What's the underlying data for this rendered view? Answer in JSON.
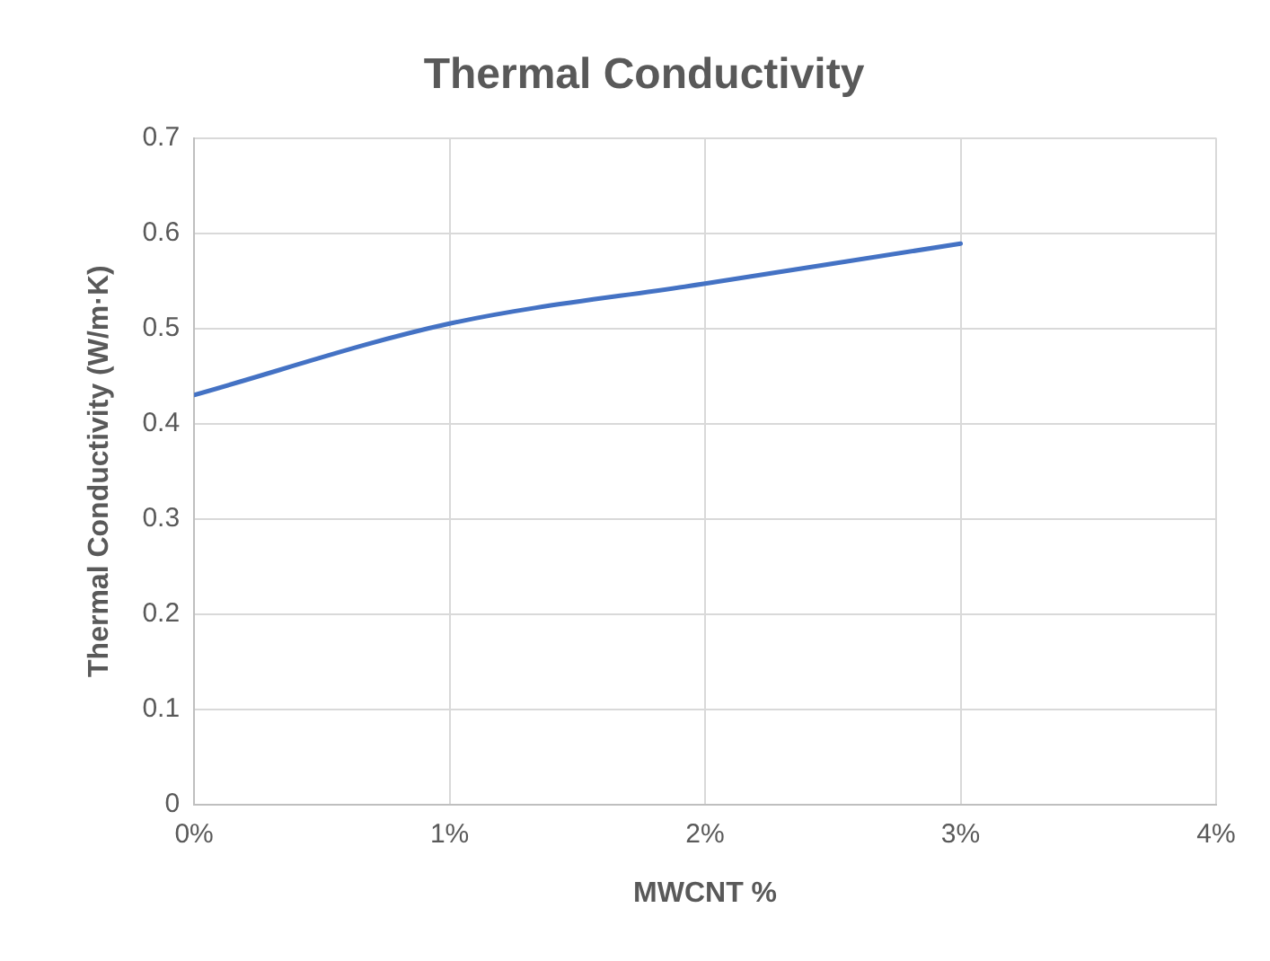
{
  "chart_data": {
    "type": "line",
    "title": "Thermal Conductivity",
    "xlabel": "MWCNT %",
    "ylabel": "Thermal Conductivity (W/m·K)",
    "x": [
      0,
      1,
      2,
      3
    ],
    "series": [
      {
        "color": "#4472c4",
        "values": [
          0.43,
          0.505,
          0.547,
          0.589
        ]
      }
    ],
    "xlim": [
      0,
      4
    ],
    "xticks": [
      {
        "value": 0,
        "label": "0%"
      },
      {
        "value": 1,
        "label": "1%"
      },
      {
        "value": 2,
        "label": "2%"
      },
      {
        "value": 3,
        "label": "3%"
      },
      {
        "value": 4,
        "label": "4%"
      }
    ],
    "ylim": [
      0,
      0.7
    ],
    "yticks": [
      0,
      0.1,
      0.2,
      0.3,
      0.4,
      0.5,
      0.6,
      0.7
    ],
    "grid": true,
    "legend": false,
    "marker": "none",
    "line_style": "solid"
  }
}
